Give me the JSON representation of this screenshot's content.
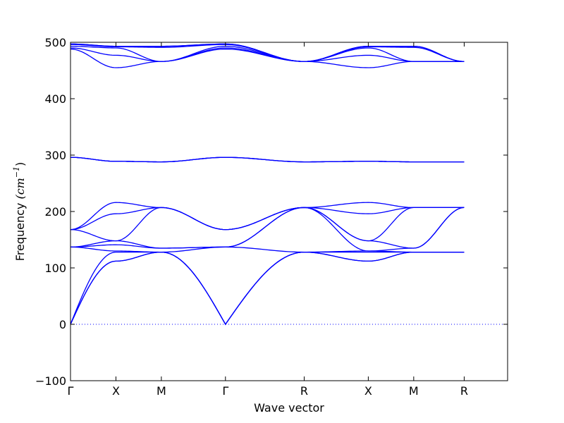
{
  "chart_data": {
    "type": "line",
    "title": "",
    "xlabel": "Wave vector",
    "ylabel": "Frequency",
    "ylabel_unit": "(cm",
    "ylabel_exp": "−1",
    "ylim": [
      -100,
      500
    ],
    "yticks": [
      -100,
      0,
      100,
      200,
      300,
      400,
      500
    ],
    "ytick_labels": [
      "−100",
      "0",
      "100",
      "200",
      "300",
      "400",
      "500"
    ],
    "xlim": [
      0,
      8.66
    ],
    "xticks": [
      0,
      0.9,
      1.8,
      3.07,
      4.63,
      5.9,
      6.8,
      7.8
    ],
    "xtick_labels": [
      "Γ",
      "X",
      "M",
      "Γ",
      "R",
      "X",
      "M",
      "R"
    ],
    "line_color": "#0000ff",
    "zero_line": {
      "value": 0,
      "style": "dotted",
      "color": "#0000ff"
    },
    "grid": false,
    "series": [
      {
        "x": [
          0,
          0.9,
          1.8,
          3.07,
          4.63,
          5.9,
          6.8,
          7.8
        ],
        "values": [
          0,
          112,
          128,
          0,
          128,
          112,
          128,
          128
        ]
      },
      {
        "x": [
          0,
          0.9,
          1.8,
          3.07,
          4.63,
          5.9,
          6.8,
          7.8
        ],
        "values": [
          0,
          112,
          128,
          0,
          128,
          112,
          128,
          128
        ]
      },
      {
        "x": [
          0,
          0.9,
          1.8,
          3.07,
          4.63,
          5.9,
          6.8,
          7.8
        ],
        "values": [
          0,
          128,
          128,
          0,
          128,
          128,
          128,
          128
        ]
      },
      {
        "x": [
          0,
          0.9,
          1.8,
          3.07,
          4.63,
          5.9,
          6.8,
          7.8
        ],
        "values": [
          137,
          130,
          128,
          137,
          128,
          130,
          128,
          128
        ]
      },
      {
        "x": [
          0,
          0.9,
          1.8,
          3.07,
          4.63,
          5.9,
          6.8,
          7.8
        ],
        "values": [
          137,
          141,
          135,
          137,
          207,
          130,
          135,
          207
        ]
      },
      {
        "x": [
          0,
          0.9,
          1.8,
          3.07,
          4.63,
          5.9,
          6.8,
          7.8
        ],
        "values": [
          137,
          148,
          135,
          137,
          207,
          148,
          135,
          207
        ]
      },
      {
        "x": [
          0,
          0.9,
          1.8,
          3.07,
          4.63,
          5.9,
          6.8,
          7.8
        ],
        "values": [
          168,
          148,
          207,
          168,
          207,
          148,
          207,
          207
        ]
      },
      {
        "x": [
          0,
          0.9,
          1.8,
          3.07,
          4.63,
          5.9,
          6.8,
          7.8
        ],
        "values": [
          168,
          196,
          207,
          168,
          207,
          196,
          207,
          207
        ]
      },
      {
        "x": [
          0,
          0.9,
          1.8,
          3.07,
          4.63,
          5.9,
          6.8,
          7.8
        ],
        "values": [
          168,
          216,
          207,
          168,
          207,
          216,
          207,
          207
        ]
      },
      {
        "x": [
          0,
          0.9,
          1.8,
          3.07,
          4.63,
          5.9,
          6.8,
          7.8
        ],
        "values": [
          296,
          289,
          288,
          296,
          288,
          289,
          288,
          288
        ]
      },
      {
        "x": [
          0,
          0.9,
          1.8,
          3.07,
          4.63,
          5.9,
          6.8,
          7.8
        ],
        "values": [
          296,
          289,
          288,
          296,
          288,
          289,
          288,
          288
        ]
      },
      {
        "x": [
          0,
          0.9,
          1.8,
          3.07,
          4.63,
          5.9,
          6.8,
          7.8
        ],
        "values": [
          296,
          289,
          288,
          296,
          288,
          289,
          288,
          288
        ]
      },
      {
        "x": [
          0,
          0.9,
          1.8,
          3.07,
          4.63,
          5.9,
          6.8,
          7.8
        ],
        "values": [
          488,
          455,
          466,
          488,
          466,
          455,
          466,
          466
        ]
      },
      {
        "x": [
          0,
          0.9,
          1.8,
          3.07,
          4.63,
          5.9,
          6.8,
          7.8
        ],
        "values": [
          490,
          477,
          466,
          490,
          466,
          477,
          466,
          466
        ]
      },
      {
        "x": [
          0,
          0.9,
          1.8,
          3.07,
          4.63,
          5.9,
          6.8,
          7.8
        ],
        "values": [
          493,
          490,
          466,
          493,
          466,
          490,
          466,
          466
        ]
      },
      {
        "x": [
          0,
          0.9,
          1.8,
          3.07,
          4.63,
          5.9,
          6.8,
          7.8
        ],
        "values": [
          496,
          492,
          491,
          496,
          466,
          492,
          491,
          466
        ]
      },
      {
        "x": [
          0,
          0.9,
          1.8,
          3.07,
          4.63,
          5.9,
          6.8,
          7.8
        ],
        "values": [
          497,
          493,
          493,
          497,
          466,
          493,
          493,
          466
        ]
      },
      {
        "x": [
          0,
          0.9,
          1.8,
          3.07,
          4.63,
          5.9,
          6.8,
          7.8
        ],
        "values": [
          497,
          493,
          493,
          497,
          466,
          493,
          493,
          466
        ]
      }
    ]
  }
}
